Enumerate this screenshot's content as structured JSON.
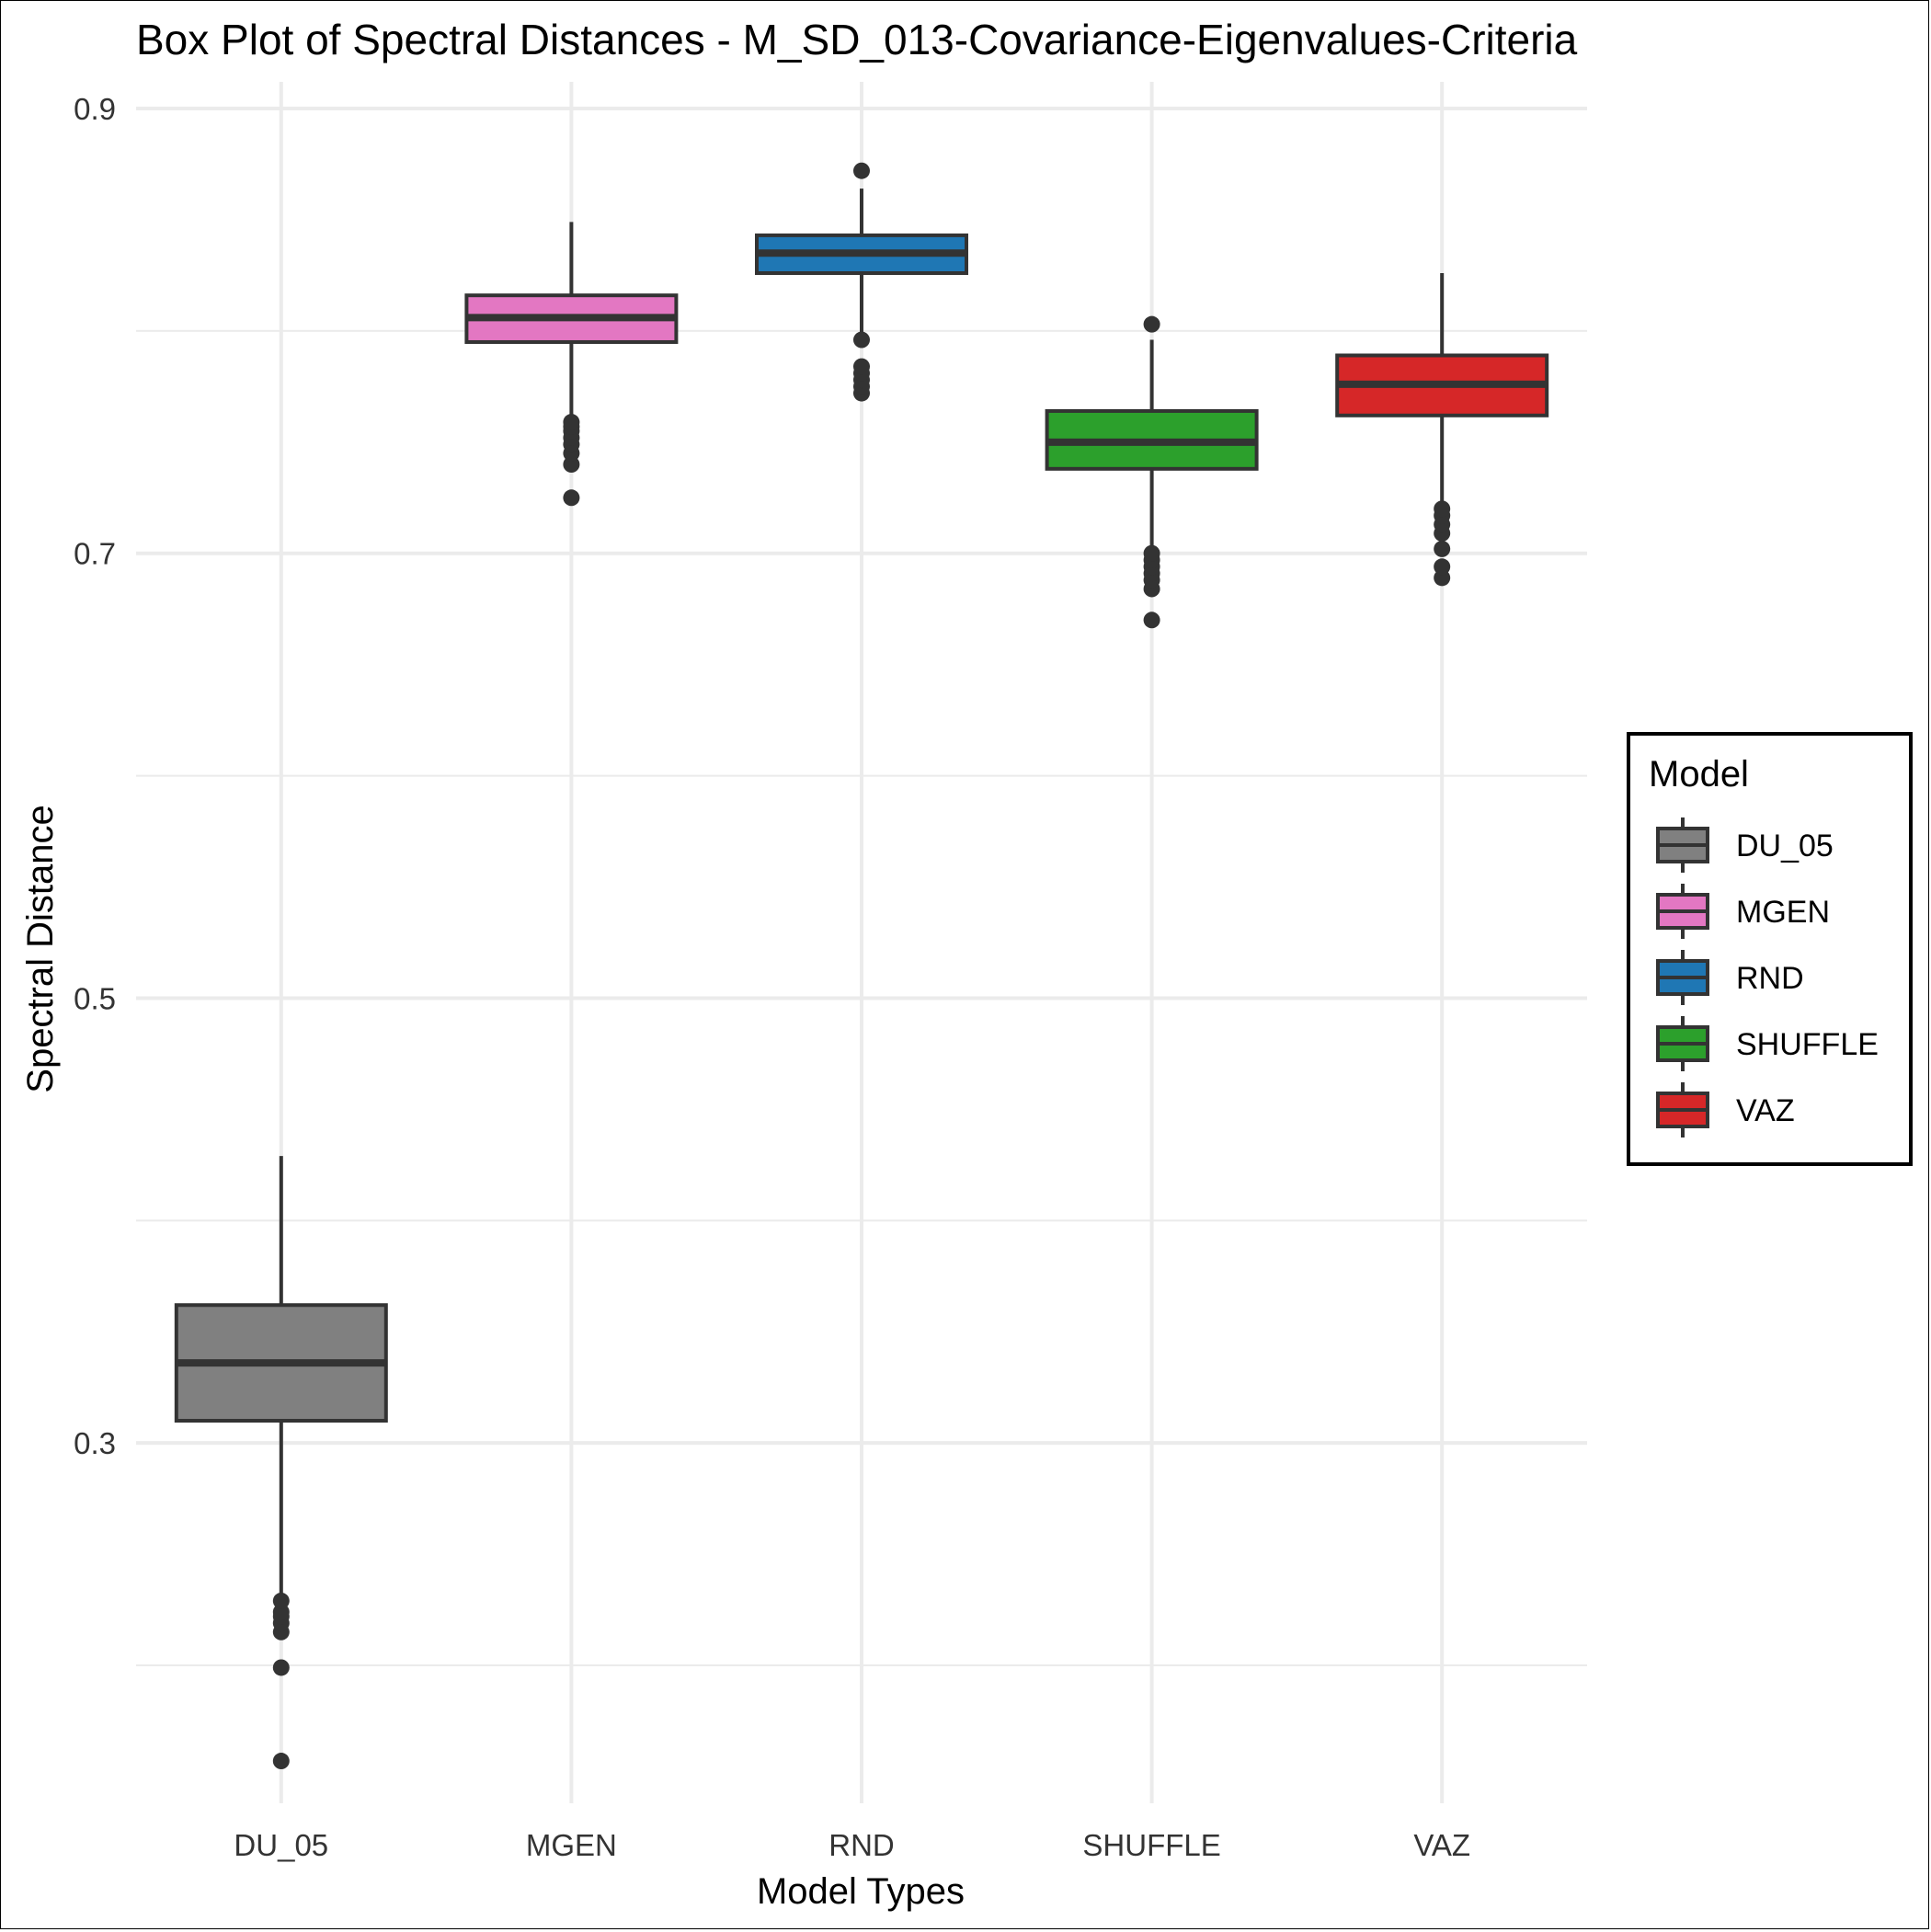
{
  "chart_data": {
    "type": "boxplot",
    "title": "Box Plot of Spectral Distances -  M_SD_013-Covariance-Eigenvalues-Criteria",
    "xlabel": "Model Types",
    "ylabel": "Spectral Distance",
    "ylim": [
      0.138,
      0.912
    ],
    "yticks": [
      0.3,
      0.5,
      0.7,
      0.9
    ],
    "ytick_labels": [
      "0.3",
      "0.5",
      "0.7",
      "0.9"
    ],
    "ygrid_minor": [
      0.2,
      0.4,
      0.6,
      0.8
    ],
    "grid": true,
    "categories": [
      "DU_05",
      "MGEN",
      "RND",
      "SHUFFLE",
      "VAZ"
    ],
    "legend": {
      "title": "Model",
      "position": "right",
      "entries": [
        "DU_05",
        "MGEN",
        "RND",
        "SHUFFLE",
        "VAZ"
      ]
    },
    "boxes": [
      {
        "name": "DU_05",
        "color": "#808080",
        "min": 0.226,
        "q1": 0.31,
        "median": 0.336,
        "q3": 0.362,
        "max": 0.429,
        "outliers": [
          0.157,
          0.199,
          0.215,
          0.219,
          0.222,
          0.224,
          0.229
        ]
      },
      {
        "name": "MGEN",
        "color": "#e377c2",
        "min": 0.76,
        "q1": 0.795,
        "median": 0.806,
        "q3": 0.816,
        "max": 0.849,
        "outliers": [
          0.725,
          0.74,
          0.745,
          0.749,
          0.752,
          0.755,
          0.757,
          0.759
        ]
      },
      {
        "name": "RND",
        "color": "#1f77b4",
        "min": 0.798,
        "q1": 0.826,
        "median": 0.835,
        "q3": 0.843,
        "max": 0.864,
        "outliers": [
          0.772,
          0.775,
          0.778,
          0.781,
          0.784,
          0.796,
          0.872
        ]
      },
      {
        "name": "SHUFFLE",
        "color": "#2ca02c",
        "min": 0.701,
        "q1": 0.738,
        "median": 0.75,
        "q3": 0.764,
        "max": 0.796,
        "outliers": [
          0.67,
          0.684,
          0.688,
          0.691,
          0.694,
          0.697,
          0.7,
          0.803
        ]
      },
      {
        "name": "VAZ",
        "color": "#d62728",
        "min": 0.723,
        "q1": 0.762,
        "median": 0.776,
        "q3": 0.789,
        "max": 0.826,
        "outliers": [
          0.689,
          0.694,
          0.702,
          0.709,
          0.713,
          0.717,
          0.72
        ]
      }
    ]
  }
}
